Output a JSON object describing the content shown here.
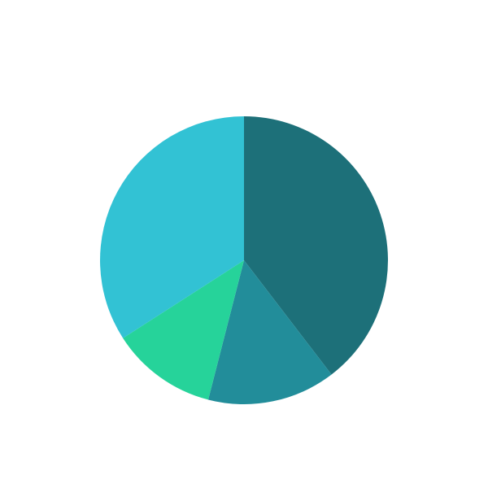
{
  "chart_data": {
    "type": "pie",
    "title": "",
    "start_angle_deg": 0,
    "direction": "clockwise",
    "legend": "none",
    "slices": [
      {
        "value": 39.6,
        "color": "#1d7079"
      },
      {
        "value": 14.4,
        "color": "#228d9a"
      },
      {
        "value": 11.9,
        "color": "#26d39a"
      },
      {
        "value": 34.1,
        "color": "#32c2d4"
      }
    ]
  }
}
